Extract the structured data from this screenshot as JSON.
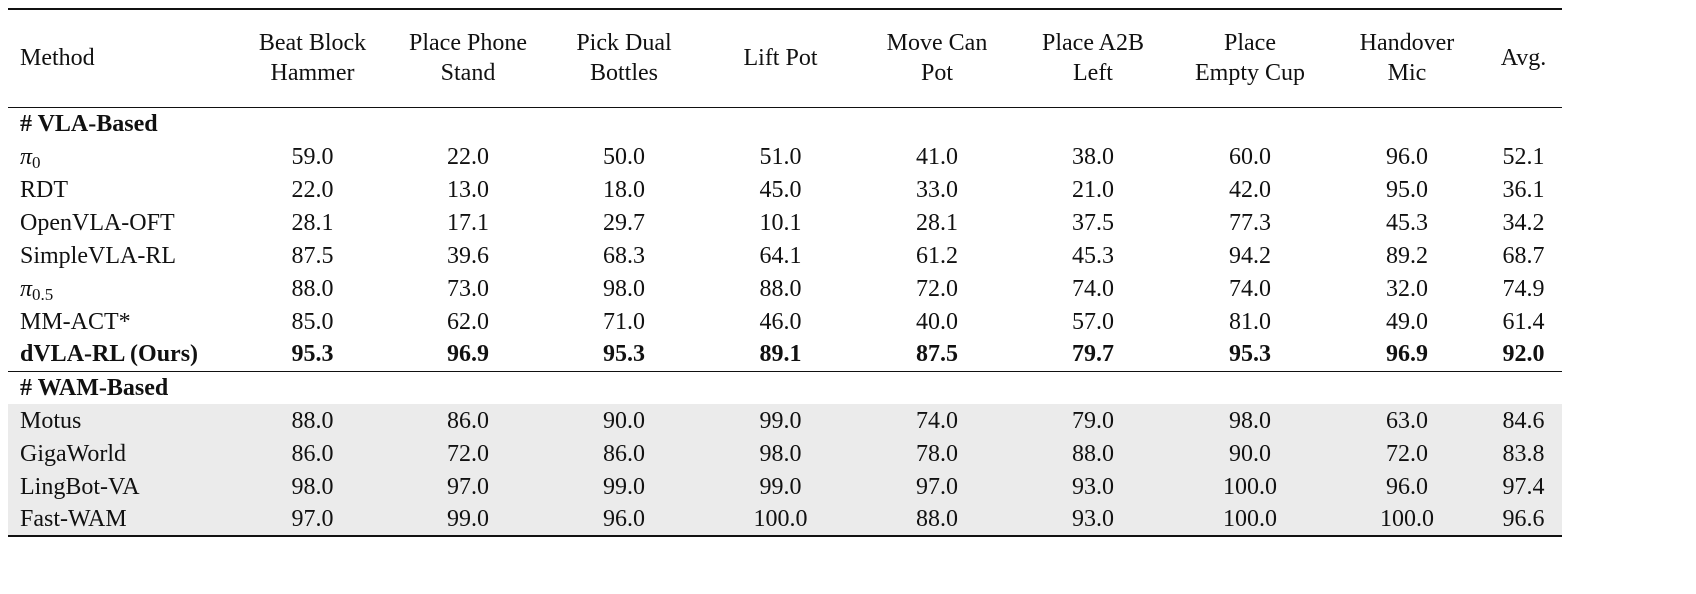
{
  "table": {
    "header": [
      [
        "Method"
      ],
      [
        "Beat Block",
        "Hammer"
      ],
      [
        "Place Phone",
        "Stand"
      ],
      [
        "Pick Dual",
        "Bottles"
      ],
      [
        "Lift Pot"
      ],
      [
        "Move Can",
        "Pot"
      ],
      [
        "Place A2B",
        "Left"
      ],
      [
        "Place",
        "Empty Cup"
      ],
      [
        "Handover",
        "Mic"
      ],
      [
        "Avg."
      ]
    ],
    "sections": [
      {
        "title": "# VLA-Based",
        "shaded": false,
        "rows": [
          {
            "method": "π",
            "method_subscript": "0",
            "values": [
              "59.0",
              "22.0",
              "50.0",
              "51.0",
              "41.0",
              "38.0",
              "60.0",
              "96.0",
              "52.1"
            ]
          },
          {
            "method": "RDT",
            "values": [
              "22.0",
              "13.0",
              "18.0",
              "45.0",
              "33.0",
              "21.0",
              "42.0",
              "95.0",
              "36.1"
            ]
          },
          {
            "method": "OpenVLA-OFT",
            "values": [
              "28.1",
              "17.1",
              "29.7",
              "10.1",
              "28.1",
              "37.5",
              "77.3",
              "45.3",
              "34.2"
            ]
          },
          {
            "method": "SimpleVLA-RL",
            "values": [
              "87.5",
              "39.6",
              "68.3",
              "64.1",
              "61.2",
              "45.3",
              "94.2",
              "89.2",
              "68.7"
            ]
          },
          {
            "method": "π",
            "method_subscript": "0.5",
            "values": [
              "88.0",
              "73.0",
              "98.0",
              "88.0",
              "72.0",
              "74.0",
              "74.0",
              "32.0",
              "74.9"
            ]
          },
          {
            "method": "MM-ACT*",
            "values": [
              "85.0",
              "62.0",
              "71.0",
              "46.0",
              "40.0",
              "57.0",
              "81.0",
              "49.0",
              "61.4"
            ]
          },
          {
            "method": "dVLA-RL (Ours)",
            "bold": true,
            "values": [
              "95.3",
              "96.9",
              "95.3",
              "89.1",
              "87.5",
              "79.7",
              "95.3",
              "96.9",
              "92.0"
            ]
          }
        ]
      },
      {
        "title": "# WAM-Based",
        "shaded": true,
        "rows": [
          {
            "method": "Motus",
            "values": [
              "88.0",
              "86.0",
              "90.0",
              "99.0",
              "74.0",
              "79.0",
              "98.0",
              "63.0",
              "84.6"
            ]
          },
          {
            "method": "GigaWorld",
            "values": [
              "86.0",
              "72.0",
              "86.0",
              "98.0",
              "78.0",
              "88.0",
              "90.0",
              "72.0",
              "83.8"
            ]
          },
          {
            "method": "LingBot-VA",
            "values": [
              "98.0",
              "97.0",
              "99.0",
              "99.0",
              "97.0",
              "93.0",
              "100.0",
              "96.0",
              "97.4"
            ]
          },
          {
            "method": "Fast-WAM",
            "values": [
              "97.0",
              "99.0",
              "96.0",
              "100.0",
              "88.0",
              "93.0",
              "100.0",
              "100.0",
              "96.6"
            ]
          }
        ]
      }
    ]
  }
}
